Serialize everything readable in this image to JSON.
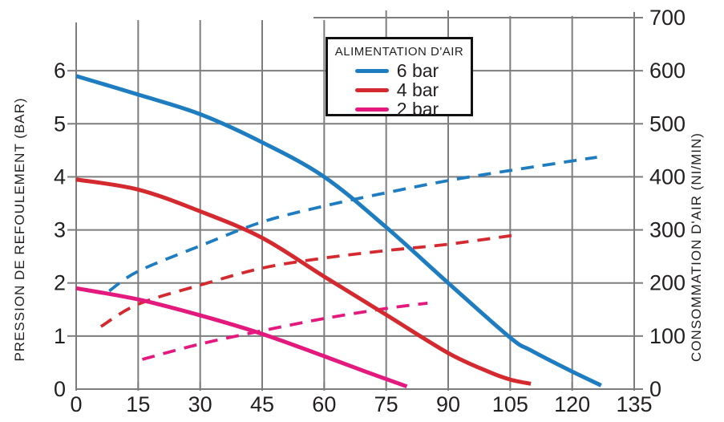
{
  "chart_data": {
    "type": "line",
    "title": "",
    "legend": {
      "title": "ALIMENTATION D'AIR",
      "position": "top-center",
      "items": [
        {
          "label": "6 bar",
          "color": "#1e7dc0"
        },
        {
          "label": "4 bar",
          "color": "#d4292e"
        },
        {
          "label": "2 bar",
          "color": "#e3197e"
        }
      ]
    },
    "x_axis": {
      "label": "",
      "min": 0,
      "max": 135,
      "ticks": [
        0,
        15,
        30,
        45,
        60,
        75,
        90,
        105,
        120,
        135
      ]
    },
    "y_left": {
      "label": "PRESSION DE REFOULEMENT (BAR)",
      "unit": "bar",
      "min": 0,
      "max": 6,
      "ticks": [
        0,
        1,
        2,
        3,
        4,
        5,
        6
      ]
    },
    "y_right": {
      "label": "CONSOMMATION D'AIR (NI/MIN)",
      "unit": "Nl/min",
      "min": 0,
      "max": 700,
      "ticks": [
        0,
        100,
        200,
        300,
        400,
        500,
        600,
        700
      ]
    },
    "grid": true,
    "series": [
      {
        "id": "consommation-6bar",
        "legend": "6 bar",
        "axis": "right",
        "style": "dashed",
        "color": "#1e7dc0",
        "points": [
          [
            8,
            185
          ],
          [
            15,
            222
          ],
          [
            30,
            270
          ],
          [
            45,
            315
          ],
          [
            60,
            345
          ],
          [
            75,
            370
          ],
          [
            90,
            393
          ],
          [
            105,
            412
          ],
          [
            120,
            430
          ],
          [
            126,
            437
          ]
        ]
      },
      {
        "id": "consommation-4bar",
        "legend": "4 bar",
        "axis": "right",
        "style": "dashed",
        "color": "#d4292e",
        "points": [
          [
            6,
            118
          ],
          [
            15,
            160
          ],
          [
            30,
            196
          ],
          [
            45,
            228
          ],
          [
            60,
            247
          ],
          [
            75,
            261
          ],
          [
            90,
            273
          ],
          [
            106,
            290
          ]
        ]
      },
      {
        "id": "consommation-2bar",
        "legend": "2 bar",
        "axis": "right",
        "style": "dashed",
        "color": "#e3197e",
        "points": [
          [
            16,
            56
          ],
          [
            30,
            85
          ],
          [
            45,
            110
          ],
          [
            60,
            133
          ],
          [
            75,
            152
          ],
          [
            85,
            162
          ]
        ]
      },
      {
        "id": "pression-2bar",
        "legend": "2 bar",
        "axis": "left",
        "style": "solid",
        "color": "#e3197e",
        "points": [
          [
            0,
            1.9
          ],
          [
            15,
            1.69
          ],
          [
            30,
            1.39
          ],
          [
            45,
            1.04
          ],
          [
            60,
            0.62
          ],
          [
            70,
            0.33
          ],
          [
            80,
            0.05
          ]
        ]
      },
      {
        "id": "pression-4bar",
        "legend": "4 bar",
        "axis": "left",
        "style": "solid",
        "color": "#d4292e",
        "points": [
          [
            0,
            3.95
          ],
          [
            15,
            3.76
          ],
          [
            30,
            3.35
          ],
          [
            45,
            2.85
          ],
          [
            60,
            2.12
          ],
          [
            75,
            1.4
          ],
          [
            90,
            0.68
          ],
          [
            100,
            0.32
          ],
          [
            105,
            0.18
          ],
          [
            110,
            0.1
          ]
        ]
      },
      {
        "id": "pression-6bar",
        "legend": "6 bar",
        "axis": "left",
        "style": "solid",
        "color": "#1e7dc0",
        "points": [
          [
            0,
            5.9
          ],
          [
            15,
            5.55
          ],
          [
            30,
            5.18
          ],
          [
            45,
            4.65
          ],
          [
            60,
            4.0
          ],
          [
            75,
            3.05
          ],
          [
            90,
            2.0
          ],
          [
            105,
            0.97
          ],
          [
            110,
            0.73
          ],
          [
            120,
            0.33
          ],
          [
            127,
            0.07
          ]
        ]
      }
    ]
  }
}
